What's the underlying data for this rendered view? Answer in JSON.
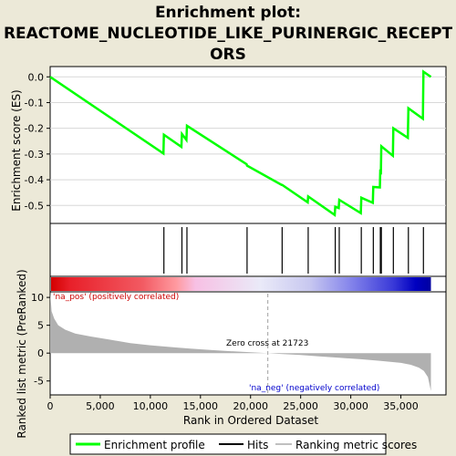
{
  "chart_data": {
    "type": "line",
    "title_lines": [
      "Enrichment plot:",
      "REACTOME_NUCLEOTIDE_LIKE_PURINERGIC_RECEPT",
      "ORS"
    ],
    "xlabel": "Rank in Ordered Dataset",
    "x_ticks": [
      0,
      5000,
      10000,
      15000,
      20000,
      25000,
      30000,
      35000
    ],
    "x_tick_labels": [
      "0",
      "5,000",
      "10,000",
      "15,000",
      "20,000",
      "25,000",
      "30,000",
      "35,000"
    ],
    "xlim": [
      0,
      39500
    ],
    "es_panel": {
      "ylabel": "Enrichment score (ES)",
      "ylim": [
        -0.57,
        0.04
      ],
      "y_ticks": [
        0.0,
        -0.1,
        -0.2,
        -0.3,
        -0.4,
        -0.5
      ],
      "y_tick_labels": [
        "0.0",
        "-0.1",
        "-0.2",
        "-0.3",
        "-0.4",
        "-0.5"
      ],
      "series": [
        {
          "color": "#00ff00",
          "x": [
            0,
            11300,
            11350,
            13100,
            13150,
            13600,
            13650,
            19600,
            19650,
            23100,
            23150,
            25700,
            25750,
            28400,
            28450,
            28800,
            28850,
            31000,
            31050,
            32200,
            32250,
            32900,
            32950,
            33000,
            33050,
            34200,
            34250,
            35700,
            35750,
            37200,
            37250,
            38000
          ],
          "y": [
            0.0,
            -0.298,
            -0.225,
            -0.272,
            -0.222,
            -0.245,
            -0.19,
            -0.34,
            -0.345,
            -0.42,
            -0.42,
            -0.488,
            -0.465,
            -0.537,
            -0.505,
            -0.51,
            -0.478,
            -0.53,
            -0.47,
            -0.49,
            -0.428,
            -0.43,
            -0.36,
            -0.38,
            -0.27,
            -0.307,
            -0.2,
            -0.237,
            -0.122,
            -0.163,
            0.02,
            0.0
          ]
        }
      ]
    },
    "hits": [
      11350,
      13150,
      13650,
      19650,
      23150,
      25750,
      28450,
      28850,
      31050,
      32250,
      32950,
      33050,
      34250,
      35750,
      37250
    ],
    "heat_bar": {
      "stops": [
        {
          "at": 0,
          "color": "#d40000"
        },
        {
          "at": 0.05,
          "color": "#e8202a"
        },
        {
          "at": 0.24,
          "color": "#f25a62"
        },
        {
          "at": 0.33,
          "color": "#ff9aa0"
        },
        {
          "at": 0.38,
          "color": "#f7c0e4"
        },
        {
          "at": 0.55,
          "color": "#eaeaf8"
        },
        {
          "at": 0.68,
          "color": "#c8c8f0"
        },
        {
          "at": 0.78,
          "color": "#8a8aec"
        },
        {
          "at": 0.9,
          "color": "#3a3ad8"
        },
        {
          "at": 0.96,
          "color": "#0000c0"
        },
        {
          "at": 1,
          "color": "#0000a0"
        }
      ]
    },
    "metric_panel": {
      "ylabel": "Ranked list metric (PreRanked)",
      "ylim": [
        -7.5,
        11
      ],
      "y_ticks": [
        10,
        5,
        0,
        -5
      ],
      "y_tick_labels": [
        "10",
        "5",
        "0",
        "-5"
      ],
      "x": [
        0,
        150,
        400,
        800,
        1500,
        2500,
        4000,
        6000,
        8000,
        10000,
        12000,
        14000,
        16000,
        18000,
        20000,
        21723,
        23000,
        25000,
        27000,
        29000,
        31000,
        33000,
        35000,
        36000,
        36800,
        37300,
        37700,
        38000
      ],
      "values": [
        11,
        7.5,
        6.2,
        5.0,
        4.2,
        3.5,
        3.0,
        2.4,
        1.8,
        1.4,
        1.1,
        0.8,
        0.55,
        0.35,
        0.15,
        0.0,
        -0.15,
        -0.35,
        -0.6,
        -0.85,
        -1.1,
        -1.4,
        -1.75,
        -2.1,
        -2.6,
        -3.2,
        -4.3,
        -6.8
      ]
    },
    "annotations": {
      "pos_label": "'na_pos' (positively correlated)",
      "neg_label": "'na_neg' (negatively correlated)",
      "zero_cross_label": "Zero cross at 21723",
      "zero_cross_x": 21723
    },
    "legend": {
      "items": [
        {
          "label": "Enrichment profile",
          "color": "#00ff00"
        },
        {
          "label": "Hits",
          "color": "#000000"
        },
        {
          "label": "Ranking metric scores",
          "color": "#c0c0c0"
        }
      ]
    }
  }
}
